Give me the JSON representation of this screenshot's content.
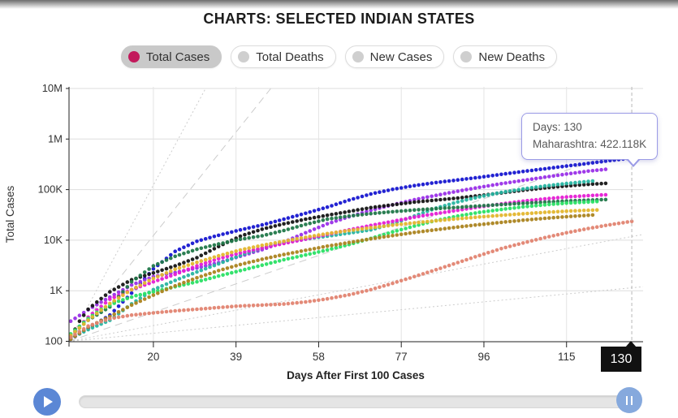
{
  "page": {
    "title": "CHARTS: SELECTED INDIAN STATES"
  },
  "toggles": [
    {
      "name": "total-cases",
      "label": "Total Cases",
      "active": true,
      "dot_color": "#c2195b"
    },
    {
      "name": "total-deaths",
      "label": "Total Deaths",
      "active": false,
      "dot_color": "#cfcfcf"
    },
    {
      "name": "new-cases",
      "label": "New Cases",
      "active": false,
      "dot_color": "#cfcfcf"
    },
    {
      "name": "new-deaths",
      "label": "New Deaths",
      "active": false,
      "dot_color": "#cfcfcf"
    }
  ],
  "tooltip": {
    "line1": "Days: 130",
    "line2": "Maharashtra: 422.118K"
  },
  "chart_data": {
    "type": "scatter",
    "title": "",
    "xlabel": "Days After First 100 Cases",
    "ylabel": "Total Cases",
    "y_scale": "log",
    "xlim": [
      0.6,
      132.6
    ],
    "ylim": [
      100,
      10000000
    ],
    "x_ticks": [
      20,
      39,
      58,
      77,
      96,
      115
    ],
    "y_ticks": [
      {
        "v": 100,
        "label": "100"
      },
      {
        "v": 1000,
        "label": "1K"
      },
      {
        "v": 10000,
        "label": "10K"
      },
      {
        "v": 100000,
        "label": "100K"
      },
      {
        "v": 1000000,
        "label": "1M"
      },
      {
        "v": 10000000,
        "label": "10M"
      }
    ],
    "grid": true,
    "current_day": 130,
    "current_day_label": "130",
    "highlight": {
      "series": "Maharashtra",
      "day": 130,
      "value": 422118,
      "value_label": "422.118K"
    },
    "guide_lines": [
      {
        "style": "dotted",
        "from_day": 0.6,
        "from_v": 100,
        "to_day": 32,
        "to_v": 10000000
      },
      {
        "style": "dashed",
        "from_day": 0.6,
        "from_v": 100,
        "to_day": 47,
        "to_v": 10000000
      },
      {
        "style": "dashed",
        "from_day": 0.6,
        "from_v": 100,
        "to_day": 132.6,
        "to_v": 800000
      },
      {
        "style": "dotted",
        "from_day": 0.6,
        "from_v": 100,
        "to_day": 132.6,
        "to_v": 13000
      },
      {
        "style": "dotted",
        "from_day": 0.6,
        "from_v": 100,
        "to_day": 132.6,
        "to_v": 1200
      }
    ],
    "series": [
      {
        "name": "Maharashtra",
        "color": "#1717d0",
        "points": [
          [
            1,
            110
          ],
          [
            5,
            180
          ],
          [
            10,
            330
          ],
          [
            15,
            900
          ],
          [
            20,
            2700
          ],
          [
            25,
            6000
          ],
          [
            30,
            9500
          ],
          [
            35,
            12500
          ],
          [
            40,
            16000
          ],
          [
            45,
            20000
          ],
          [
            50,
            26000
          ],
          [
            55,
            34000
          ],
          [
            60,
            45000
          ],
          [
            65,
            62000
          ],
          [
            70,
            82000
          ],
          [
            75,
            101000
          ],
          [
            80,
            120000
          ],
          [
            85,
            138000
          ],
          [
            90,
            155000
          ],
          [
            95,
            175000
          ],
          [
            100,
            200000
          ],
          [
            105,
            228000
          ],
          [
            110,
            258000
          ],
          [
            115,
            292000
          ],
          [
            120,
            330000
          ],
          [
            125,
            375000
          ],
          [
            130,
            422118
          ]
        ]
      },
      {
        "name": "series-violet",
        "color": "#9a30e8",
        "points": [
          [
            1,
            250
          ],
          [
            5,
            420
          ],
          [
            10,
            750
          ],
          [
            15,
            1300
          ],
          [
            20,
            1900
          ],
          [
            25,
            2300
          ],
          [
            30,
            2800
          ],
          [
            35,
            3600
          ],
          [
            40,
            4800
          ],
          [
            45,
            6500
          ],
          [
            50,
            9200
          ],
          [
            55,
            14000
          ],
          [
            60,
            21000
          ],
          [
            65,
            29000
          ],
          [
            70,
            39000
          ],
          [
            75,
            50000
          ],
          [
            80,
            63000
          ],
          [
            85,
            77000
          ],
          [
            90,
            93000
          ],
          [
            95,
            111000
          ],
          [
            100,
            131000
          ],
          [
            105,
            152000
          ],
          [
            110,
            176000
          ],
          [
            115,
            203000
          ],
          [
            120,
            232000
          ],
          [
            124,
            252000
          ]
        ]
      },
      {
        "name": "series-black",
        "color": "#151515",
        "points": [
          [
            1,
            120
          ],
          [
            3,
            250
          ],
          [
            5,
            430
          ],
          [
            8,
            700
          ],
          [
            10,
            950
          ],
          [
            15,
            1650
          ],
          [
            20,
            2250
          ],
          [
            25,
            3100
          ],
          [
            30,
            4500
          ],
          [
            35,
            7500
          ],
          [
            40,
            12000
          ],
          [
            45,
            16500
          ],
          [
            50,
            21000
          ],
          [
            55,
            26000
          ],
          [
            60,
            31000
          ],
          [
            65,
            37000
          ],
          [
            70,
            44000
          ],
          [
            75,
            50000
          ],
          [
            80,
            56500
          ],
          [
            85,
            62000
          ],
          [
            90,
            68000
          ],
          [
            95,
            76000
          ],
          [
            100,
            86000
          ],
          [
            105,
            97000
          ],
          [
            110,
            108000
          ],
          [
            115,
            118000
          ],
          [
            120,
            127000
          ],
          [
            124,
            133000
          ]
        ]
      },
      {
        "name": "series-turquoise",
        "color": "#28b5a2",
        "points": [
          [
            1,
            115
          ],
          [
            5,
            170
          ],
          [
            10,
            260
          ],
          [
            15,
            550
          ],
          [
            20,
            1050
          ],
          [
            25,
            1600
          ],
          [
            30,
            2350
          ],
          [
            35,
            3400
          ],
          [
            40,
            5000
          ],
          [
            45,
            7000
          ],
          [
            48,
            8200
          ],
          [
            55,
            10500
          ],
          [
            60,
            12000
          ],
          [
            65,
            13800
          ],
          [
            70,
            16000
          ],
          [
            75,
            21000
          ],
          [
            80,
            30000
          ],
          [
            85,
            43000
          ],
          [
            90,
            57000
          ],
          [
            95,
            72000
          ],
          [
            100,
            88000
          ],
          [
            105,
            103000
          ],
          [
            110,
            118000
          ],
          [
            115,
            132000
          ],
          [
            121,
            148000
          ]
        ]
      },
      {
        "name": "series-magenta",
        "color": "#e51ed4",
        "points": [
          [
            1,
            130
          ],
          [
            5,
            300
          ],
          [
            10,
            680
          ],
          [
            15,
            1050
          ],
          [
            20,
            1500
          ],
          [
            25,
            2100
          ],
          [
            30,
            3100
          ],
          [
            35,
            4300
          ],
          [
            40,
            5600
          ],
          [
            45,
            7000
          ],
          [
            50,
            8600
          ],
          [
            55,
            10500
          ],
          [
            60,
            13000
          ],
          [
            65,
            16000
          ],
          [
            70,
            19500
          ],
          [
            75,
            23500
          ],
          [
            80,
            28500
          ],
          [
            85,
            33500
          ],
          [
            90,
            39000
          ],
          [
            95,
            45500
          ],
          [
            100,
            52000
          ],
          [
            105,
            59000
          ],
          [
            110,
            65500
          ],
          [
            115,
            71500
          ],
          [
            120,
            76000
          ],
          [
            124,
            79000
          ]
        ]
      },
      {
        "name": "series-darkgreen",
        "color": "#21784a",
        "points": [
          [
            1,
            130
          ],
          [
            5,
            260
          ],
          [
            10,
            480
          ],
          [
            15,
            1500
          ],
          [
            20,
            3100
          ],
          [
            25,
            4800
          ],
          [
            30,
            6600
          ],
          [
            35,
            8400
          ],
          [
            40,
            10400
          ],
          [
            45,
            12200
          ],
          [
            50,
            15500
          ],
          [
            55,
            20500
          ],
          [
            60,
            26000
          ],
          [
            65,
            30000
          ],
          [
            70,
            33500
          ],
          [
            75,
            36500
          ],
          [
            80,
            39500
          ],
          [
            85,
            42000
          ],
          [
            90,
            44500
          ],
          [
            95,
            47500
          ],
          [
            100,
            50500
          ],
          [
            105,
            53500
          ],
          [
            110,
            56500
          ],
          [
            115,
            59500
          ],
          [
            120,
            62000
          ],
          [
            124,
            63500
          ]
        ]
      },
      {
        "name": "series-springgreen",
        "color": "#2ae065",
        "points": [
          [
            1,
            140
          ],
          [
            5,
            280
          ],
          [
            8,
            430
          ],
          [
            12,
            620
          ],
          [
            16,
            800
          ],
          [
            20,
            950
          ],
          [
            25,
            1200
          ],
          [
            30,
            1500
          ],
          [
            35,
            1950
          ],
          [
            40,
            2500
          ],
          [
            45,
            3200
          ],
          [
            50,
            4100
          ],
          [
            55,
            5100
          ],
          [
            60,
            6400
          ],
          [
            65,
            8200
          ],
          [
            70,
            10800
          ],
          [
            75,
            14500
          ],
          [
            80,
            19000
          ],
          [
            85,
            24500
          ],
          [
            90,
            30000
          ],
          [
            95,
            35500
          ],
          [
            100,
            40500
          ],
          [
            105,
            45500
          ],
          [
            110,
            50000
          ],
          [
            115,
            54000
          ],
          [
            122,
            58000
          ]
        ]
      },
      {
        "name": "series-gold",
        "color": "#e3b62e",
        "points": [
          [
            1,
            130
          ],
          [
            5,
            260
          ],
          [
            10,
            560
          ],
          [
            15,
            1050
          ],
          [
            20,
            1750
          ],
          [
            25,
            2650
          ],
          [
            30,
            3650
          ],
          [
            35,
            4900
          ],
          [
            40,
            6400
          ],
          [
            45,
            7900
          ],
          [
            50,
            9500
          ],
          [
            55,
            11400
          ],
          [
            60,
            13500
          ],
          [
            65,
            15500
          ],
          [
            70,
            17600
          ],
          [
            75,
            19800
          ],
          [
            80,
            22000
          ],
          [
            85,
            24200
          ],
          [
            90,
            26500
          ],
          [
            95,
            28800
          ],
          [
            100,
            31000
          ],
          [
            105,
            33300
          ],
          [
            110,
            35500
          ],
          [
            116,
            37800
          ],
          [
            122,
            39500
          ]
        ]
      },
      {
        "name": "series-darkgold",
        "color": "#ab8420",
        "points": [
          [
            1,
            110
          ],
          [
            5,
            190
          ],
          [
            10,
            310
          ],
          [
            15,
            520
          ],
          [
            20,
            820
          ],
          [
            25,
            1250
          ],
          [
            30,
            1800
          ],
          [
            35,
            2500
          ],
          [
            40,
            3300
          ],
          [
            45,
            4200
          ],
          [
            50,
            5200
          ],
          [
            55,
            6300
          ],
          [
            60,
            7600
          ],
          [
            65,
            9000
          ],
          [
            70,
            10600
          ],
          [
            75,
            12300
          ],
          [
            80,
            14200
          ],
          [
            85,
            16100
          ],
          [
            90,
            18200
          ],
          [
            95,
            20300
          ],
          [
            100,
            22500
          ],
          [
            105,
            24800
          ],
          [
            110,
            27000
          ],
          [
            116,
            29500
          ],
          [
            121,
            31500
          ]
        ]
      },
      {
        "name": "series-salmon",
        "color": "#e28471",
        "points": [
          [
            1,
            120
          ],
          [
            5,
            200
          ],
          [
            10,
            280
          ],
          [
            15,
            330
          ],
          [
            20,
            365
          ],
          [
            25,
            400
          ],
          [
            30,
            430
          ],
          [
            35,
            465
          ],
          [
            40,
            500
          ],
          [
            45,
            520
          ],
          [
            50,
            545
          ],
          [
            55,
            600
          ],
          [
            60,
            690
          ],
          [
            65,
            830
          ],
          [
            70,
            1050
          ],
          [
            75,
            1400
          ],
          [
            80,
            1900
          ],
          [
            85,
            2600
          ],
          [
            90,
            3600
          ],
          [
            95,
            5000
          ],
          [
            100,
            6800
          ],
          [
            105,
            8800
          ],
          [
            110,
            11200
          ],
          [
            115,
            14000
          ],
          [
            120,
            17000
          ],
          [
            125,
            20200
          ],
          [
            130,
            23600
          ]
        ]
      }
    ]
  }
}
